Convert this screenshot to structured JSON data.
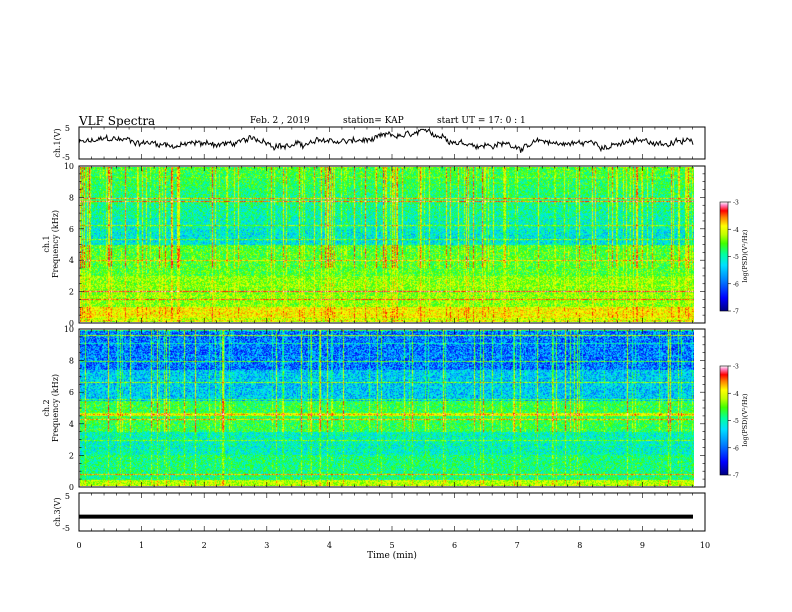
{
  "header": {
    "title": "VLF Spectra",
    "date": "Feb. 2 , 2019",
    "station": "station= KAP",
    "start": "start UT =  17: 0 : 1"
  },
  "chart_data": [
    {
      "type": "line",
      "panel": "ch1-waveform",
      "ylabel": "ch.1(V)",
      "ylim": [
        -5,
        5
      ],
      "yticks": [
        "5",
        "-5"
      ],
      "xlim": [
        0,
        10
      ],
      "color": "#000000"
    },
    {
      "type": "heatmap",
      "panel": "ch1-spectrogram",
      "ylabel": "ch.1 Frequency (kHz)",
      "ylim": [
        0,
        10
      ],
      "yticks": [
        "0",
        "2",
        "4",
        "6",
        "8",
        "10"
      ],
      "xlim": [
        0,
        10
      ],
      "colorbar": {
        "label": "log(PSD)(V²/Hz)",
        "range": [
          -7,
          -3
        ],
        "ticks": [
          "-3",
          "-4",
          "-5",
          "-6",
          "-7"
        ]
      }
    },
    {
      "type": "heatmap",
      "panel": "ch2-spectrogram",
      "ylabel": "ch.2 Frequency (kHz)",
      "ylim": [
        0,
        10
      ],
      "yticks": [
        "0",
        "2",
        "4",
        "6",
        "8",
        "10"
      ],
      "xlim": [
        0,
        10
      ],
      "colorbar": {
        "label": "log(PSD)(V²/Hz)",
        "range": [
          -7,
          -3
        ],
        "ticks": [
          "-3",
          "-4",
          "-5",
          "-6",
          "-7"
        ]
      }
    },
    {
      "type": "line",
      "panel": "ch3-waveform",
      "ylabel": "ch.3(V)",
      "ylim": [
        -5,
        5
      ],
      "yticks": [
        "5",
        "-5"
      ],
      "xlim": [
        0,
        10
      ],
      "constant_value": -1.2,
      "color": "#000000"
    }
  ],
  "x_axis": {
    "label": "Time (min)",
    "ticks": [
      "0",
      "1",
      "2",
      "3",
      "4",
      "5",
      "6",
      "7",
      "8",
      "9",
      "10"
    ]
  },
  "colors": {
    "colormap": [
      "#000080",
      "#0000ff",
      "#0080ff",
      "#00e0ff",
      "#00ffa0",
      "#40ff00",
      "#c0ff00",
      "#ffff00",
      "#ff8000",
      "#ff0000",
      "#ff80c0",
      "#ffffff"
    ]
  }
}
